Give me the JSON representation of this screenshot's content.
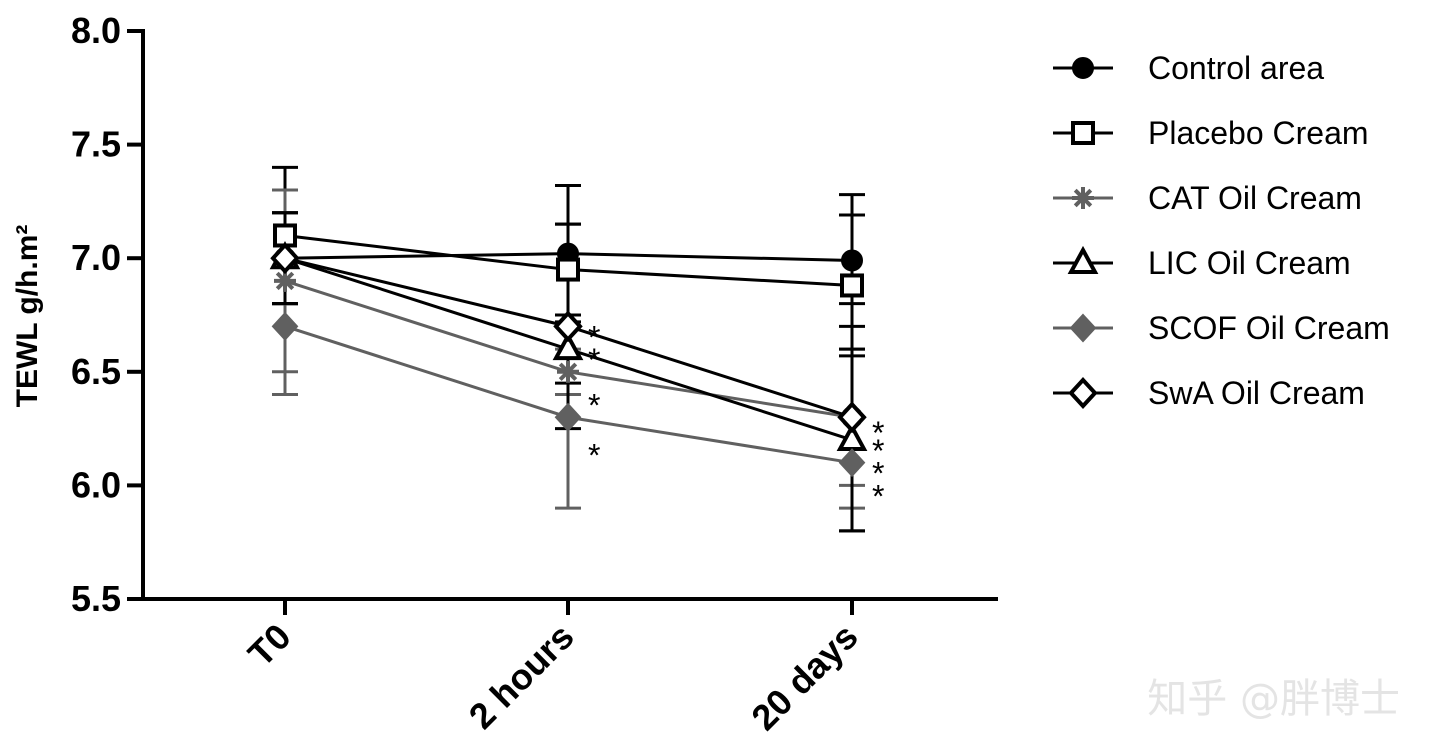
{
  "chart_data": {
    "type": "line",
    "title": "",
    "xlabel": "",
    "ylabel": "TEWL g/h.m²",
    "ylim": [
      5.5,
      8.0
    ],
    "yticks": [
      "5.5",
      "6.0",
      "6.5",
      "7.0",
      "7.5",
      "8.0"
    ],
    "categories": [
      "T0",
      "2 hours",
      "20 days"
    ],
    "legend_position": "right",
    "series": [
      {
        "name": "Control area",
        "marker": "circle-filled",
        "color": "#000000",
        "values": [
          7.0,
          7.02,
          6.99
        ],
        "error": [
          0.2,
          0.3,
          0.29
        ]
      },
      {
        "name": "Placebo Cream",
        "marker": "square-open",
        "color": "#000000",
        "values": [
          7.1,
          6.95,
          6.88
        ],
        "error": [
          0.3,
          0.2,
          0.31
        ]
      },
      {
        "name": "CAT Oil Cream",
        "marker": "asterisk",
        "color": "#606060",
        "values": [
          6.9,
          6.5,
          6.3
        ],
        "error": [
          0.4,
          0.1,
          0.3
        ]
      },
      {
        "name": "LIC Oil Cream",
        "marker": "triangle-open",
        "color": "#000000",
        "values": [
          7.0,
          6.6,
          6.2
        ],
        "error": [
          0.2,
          0.15,
          0.4
        ]
      },
      {
        "name": "SCOF Oil Cream",
        "marker": "diamond-filled",
        "color": "#606060",
        "values": [
          6.7,
          6.3,
          6.1
        ],
        "error": [
          0.3,
          0.4,
          0.2
        ]
      },
      {
        "name": "SwA Oil Cream",
        "marker": "diamond-open",
        "color": "#000000",
        "values": [
          7.0,
          6.7,
          6.3
        ],
        "error": [
          0.2,
          0.45,
          0.5
        ]
      }
    ],
    "annotations": [
      {
        "category": "2 hours",
        "value": 6.7,
        "text": "*"
      },
      {
        "category": "2 hours",
        "value": 6.6,
        "text": "*"
      },
      {
        "category": "2 hours",
        "value": 6.4,
        "text": "*"
      },
      {
        "category": "2 hours",
        "value": 6.18,
        "text": "*"
      },
      {
        "category": "20 days",
        "value": 6.28,
        "text": "*"
      },
      {
        "category": "20 days",
        "value": 6.2,
        "text": "*"
      },
      {
        "category": "20 days",
        "value": 6.1,
        "text": "*"
      },
      {
        "category": "20 days",
        "value": 6.0,
        "text": "*"
      }
    ]
  },
  "watermark": "知乎 @胖博士"
}
